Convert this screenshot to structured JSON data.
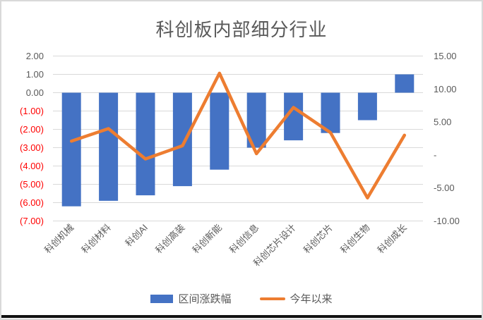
{
  "chart_data": {
    "type": "combo-bar-line",
    "title": "科创板内部细分行业",
    "categories": [
      "科创机械",
      "科创材料",
      "科创AI",
      "科创高装",
      "科创新能",
      "科创信息",
      "科创芯片设计",
      "科创芯片",
      "科创生物",
      "科创成长"
    ],
    "series": [
      {
        "name": "区间涨跌幅",
        "type": "bar",
        "axis": "left",
        "color": "#4472C4",
        "values": [
          -6.2,
          -5.9,
          -5.6,
          -5.1,
          -4.2,
          -3.0,
          -2.6,
          -2.2,
          -1.5,
          1.0
        ]
      },
      {
        "name": "今年以来",
        "type": "line",
        "axis": "right",
        "color": "#ED7D31",
        "values": [
          2.1,
          4.0,
          -0.6,
          1.4,
          12.4,
          0.2,
          7.2,
          3.4,
          -6.5,
          3.0
        ]
      }
    ],
    "left_axis": {
      "max": 2,
      "min": -7,
      "ticks": [
        "2.00",
        "1.00",
        "0.00",
        "(1.00)",
        "(2.00)",
        "(3.00)",
        "(4.00)",
        "(5.00)",
        "(6.00)",
        "(7.00)"
      ],
      "tick_values": [
        2,
        1,
        0,
        -1,
        -2,
        -3,
        -4,
        -5,
        -6,
        -7
      ],
      "positive_color": "#595959",
      "negative_color": "#FF0000"
    },
    "right_axis": {
      "max": 15,
      "min": -10,
      "ticks": [
        "15.00",
        "10.00",
        "5.00",
        "-",
        "-5.00",
        "-10.00"
      ],
      "tick_values": [
        15,
        10,
        5,
        0,
        -5,
        -10
      ],
      "color": "#595959"
    },
    "gridline_color": "#D9D9D9",
    "category_label_color": "#595959",
    "legend": [
      {
        "label": "区间涨跌幅",
        "swatch": "bar",
        "color": "#4472C4"
      },
      {
        "label": "今年以来",
        "swatch": "line",
        "color": "#ED7D31"
      }
    ]
  }
}
